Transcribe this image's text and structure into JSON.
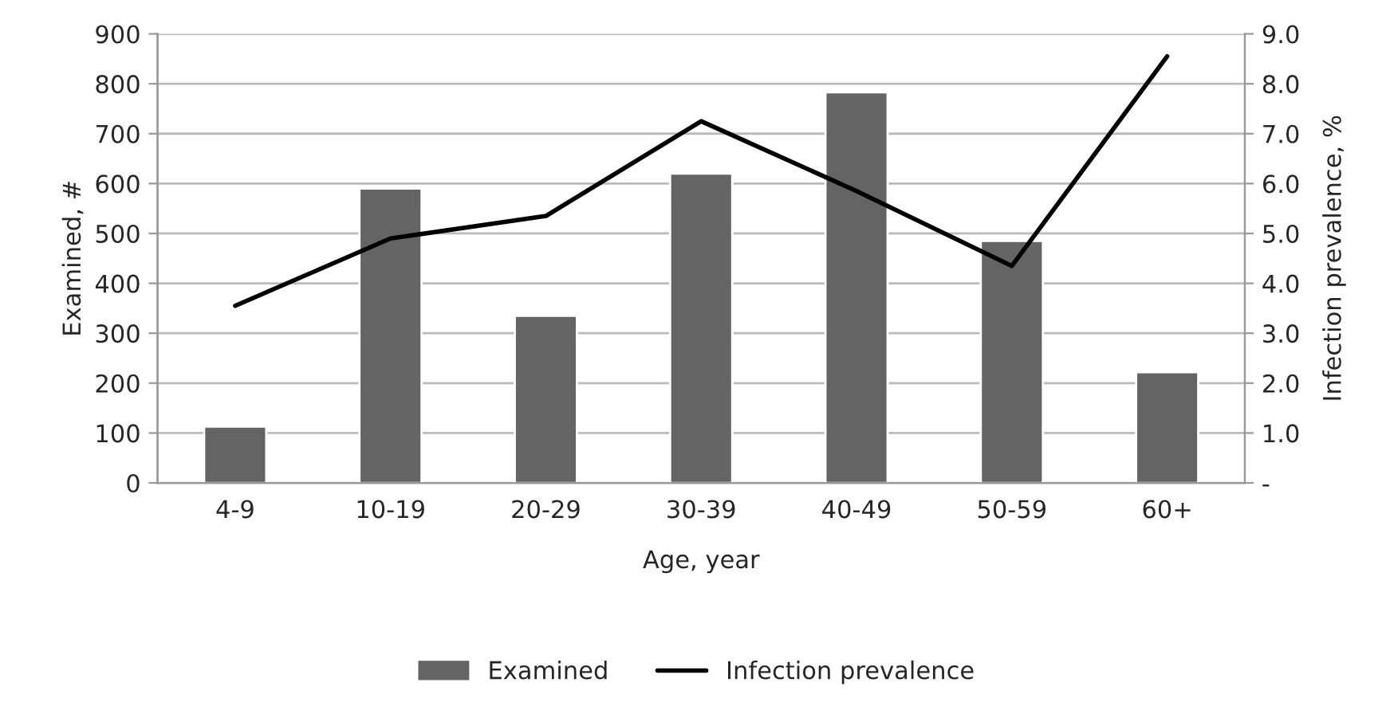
{
  "chart_data": {
    "type": "bar",
    "xlabel": "Age, year",
    "ylabel": "Examined, #",
    "y2label": "Infection prevalence, %",
    "categories": [
      "4-9",
      "10-19",
      "20-29",
      "30-39",
      "40-49",
      "50-59",
      "60+"
    ],
    "series": [
      {
        "name": "Examined",
        "color": "#646464",
        "values": [
          113,
          590,
          335,
          620,
          783,
          485,
          222
        ]
      },
      {
        "name": "Infection prevalence",
        "type": "line",
        "axis": "y2",
        "color": "#000000",
        "values": [
          3.55,
          4.9,
          5.35,
          7.25,
          5.85,
          4.35,
          8.55
        ]
      }
    ],
    "ylim": [
      0,
      900
    ],
    "yticks": [
      0,
      100,
      200,
      300,
      400,
      500,
      600,
      700,
      800,
      900
    ],
    "y2lim": [
      0,
      9
    ],
    "y2ticks": [
      {
        "value": 0,
        "label": "-"
      },
      {
        "value": 1,
        "label": "1.0"
      },
      {
        "value": 2,
        "label": "2.0"
      },
      {
        "value": 3,
        "label": "3.0"
      },
      {
        "value": 4,
        "label": "4.0"
      },
      {
        "value": 5,
        "label": "5.0"
      },
      {
        "value": 6,
        "label": "6.0"
      },
      {
        "value": 7,
        "label": "7.0"
      },
      {
        "value": 8,
        "label": "8.0"
      },
      {
        "value": 9,
        "label": "9.0"
      }
    ],
    "grid": "y",
    "legend": "bottom",
    "marker": "none",
    "line_style": "solid"
  }
}
